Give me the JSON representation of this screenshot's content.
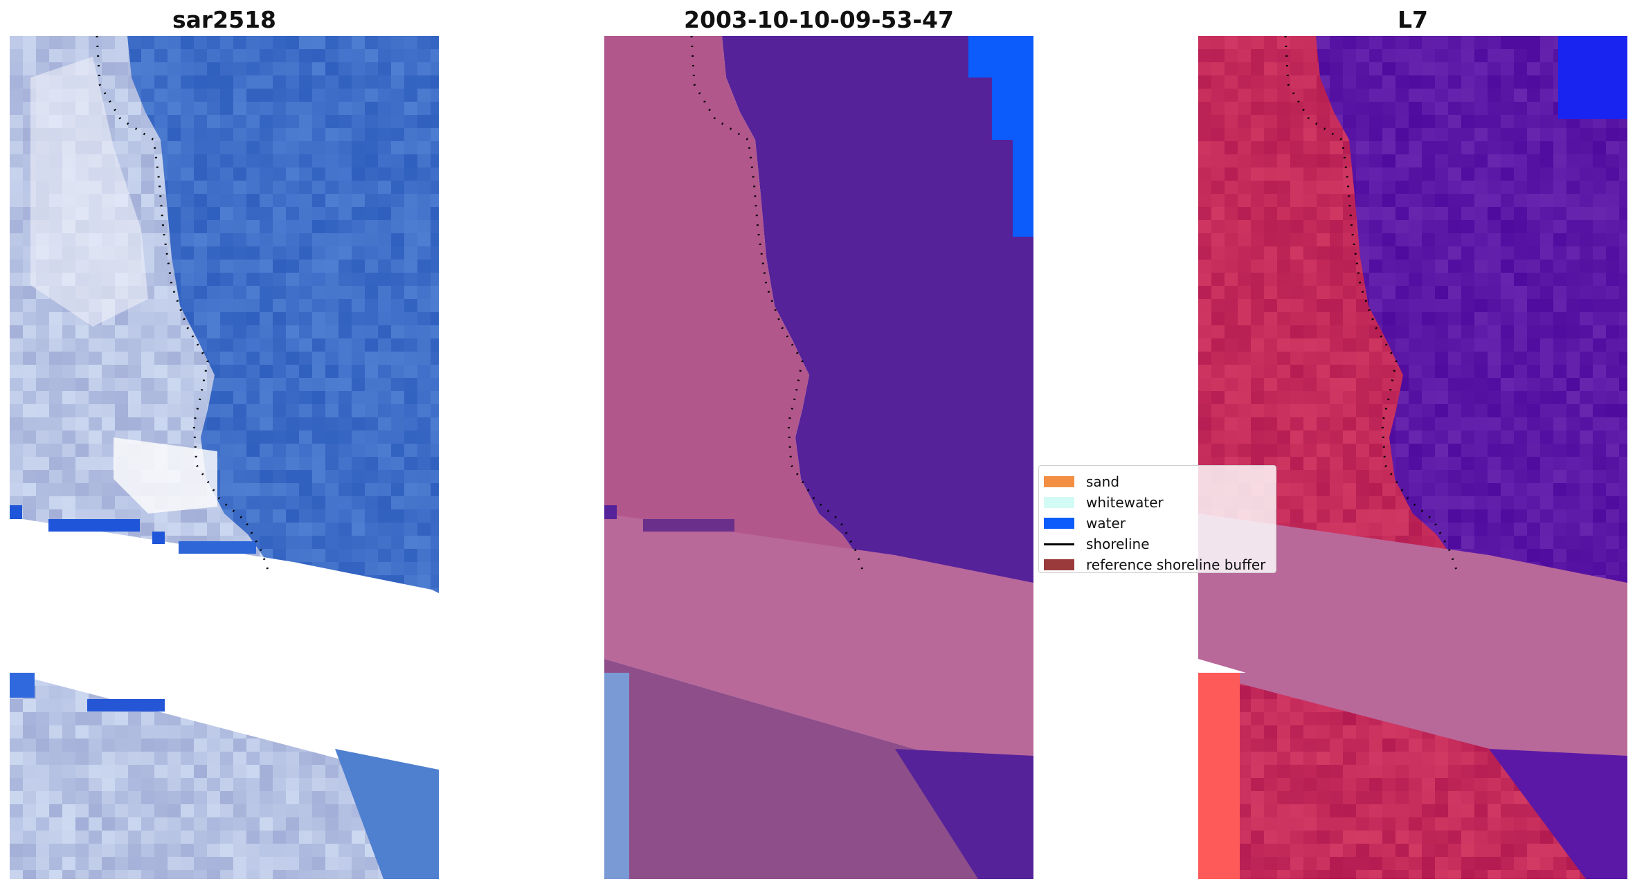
{
  "panels": [
    {
      "title": "sar2518",
      "style": "rgb"
    },
    {
      "title": "2003-10-10-09-53-47",
      "style": "classified"
    },
    {
      "title": "L7",
      "style": "mndwi"
    }
  ],
  "legend": {
    "items": [
      {
        "label": "sand",
        "color": "#f28f43",
        "kind": "patch"
      },
      {
        "label": "whitewater",
        "color": "#d3fbf5",
        "kind": "patch"
      },
      {
        "label": "water",
        "color": "#0b5cfb",
        "kind": "patch"
      },
      {
        "label": "shoreline",
        "color": "#000000",
        "kind": "line"
      },
      {
        "label": "reference shoreline buffer",
        "color": "#9a3a3a",
        "kind": "patch"
      }
    ]
  },
  "colors": {
    "water_rgb": "#3f6fc8",
    "sand_rgb": "#b8c4e4",
    "bright_rgb": "#eef0f8",
    "water_class": "#55229a",
    "land_class": "#b2578c",
    "cloud_mask": "#b9689a",
    "water_mndwi": "#5b18a6",
    "land_mndwi": "#c32a5a",
    "blue_saturated": "#0b5cfb",
    "red_saturated": "#ff5a5a"
  },
  "chart_data": {
    "type": "image-panels",
    "panel_titles": [
      "sar2518",
      "2003-10-10-09-53-47",
      "L7"
    ],
    "legend_entries": [
      "sand",
      "whitewater",
      "water",
      "shoreline",
      "reference shoreline buffer"
    ]
  }
}
